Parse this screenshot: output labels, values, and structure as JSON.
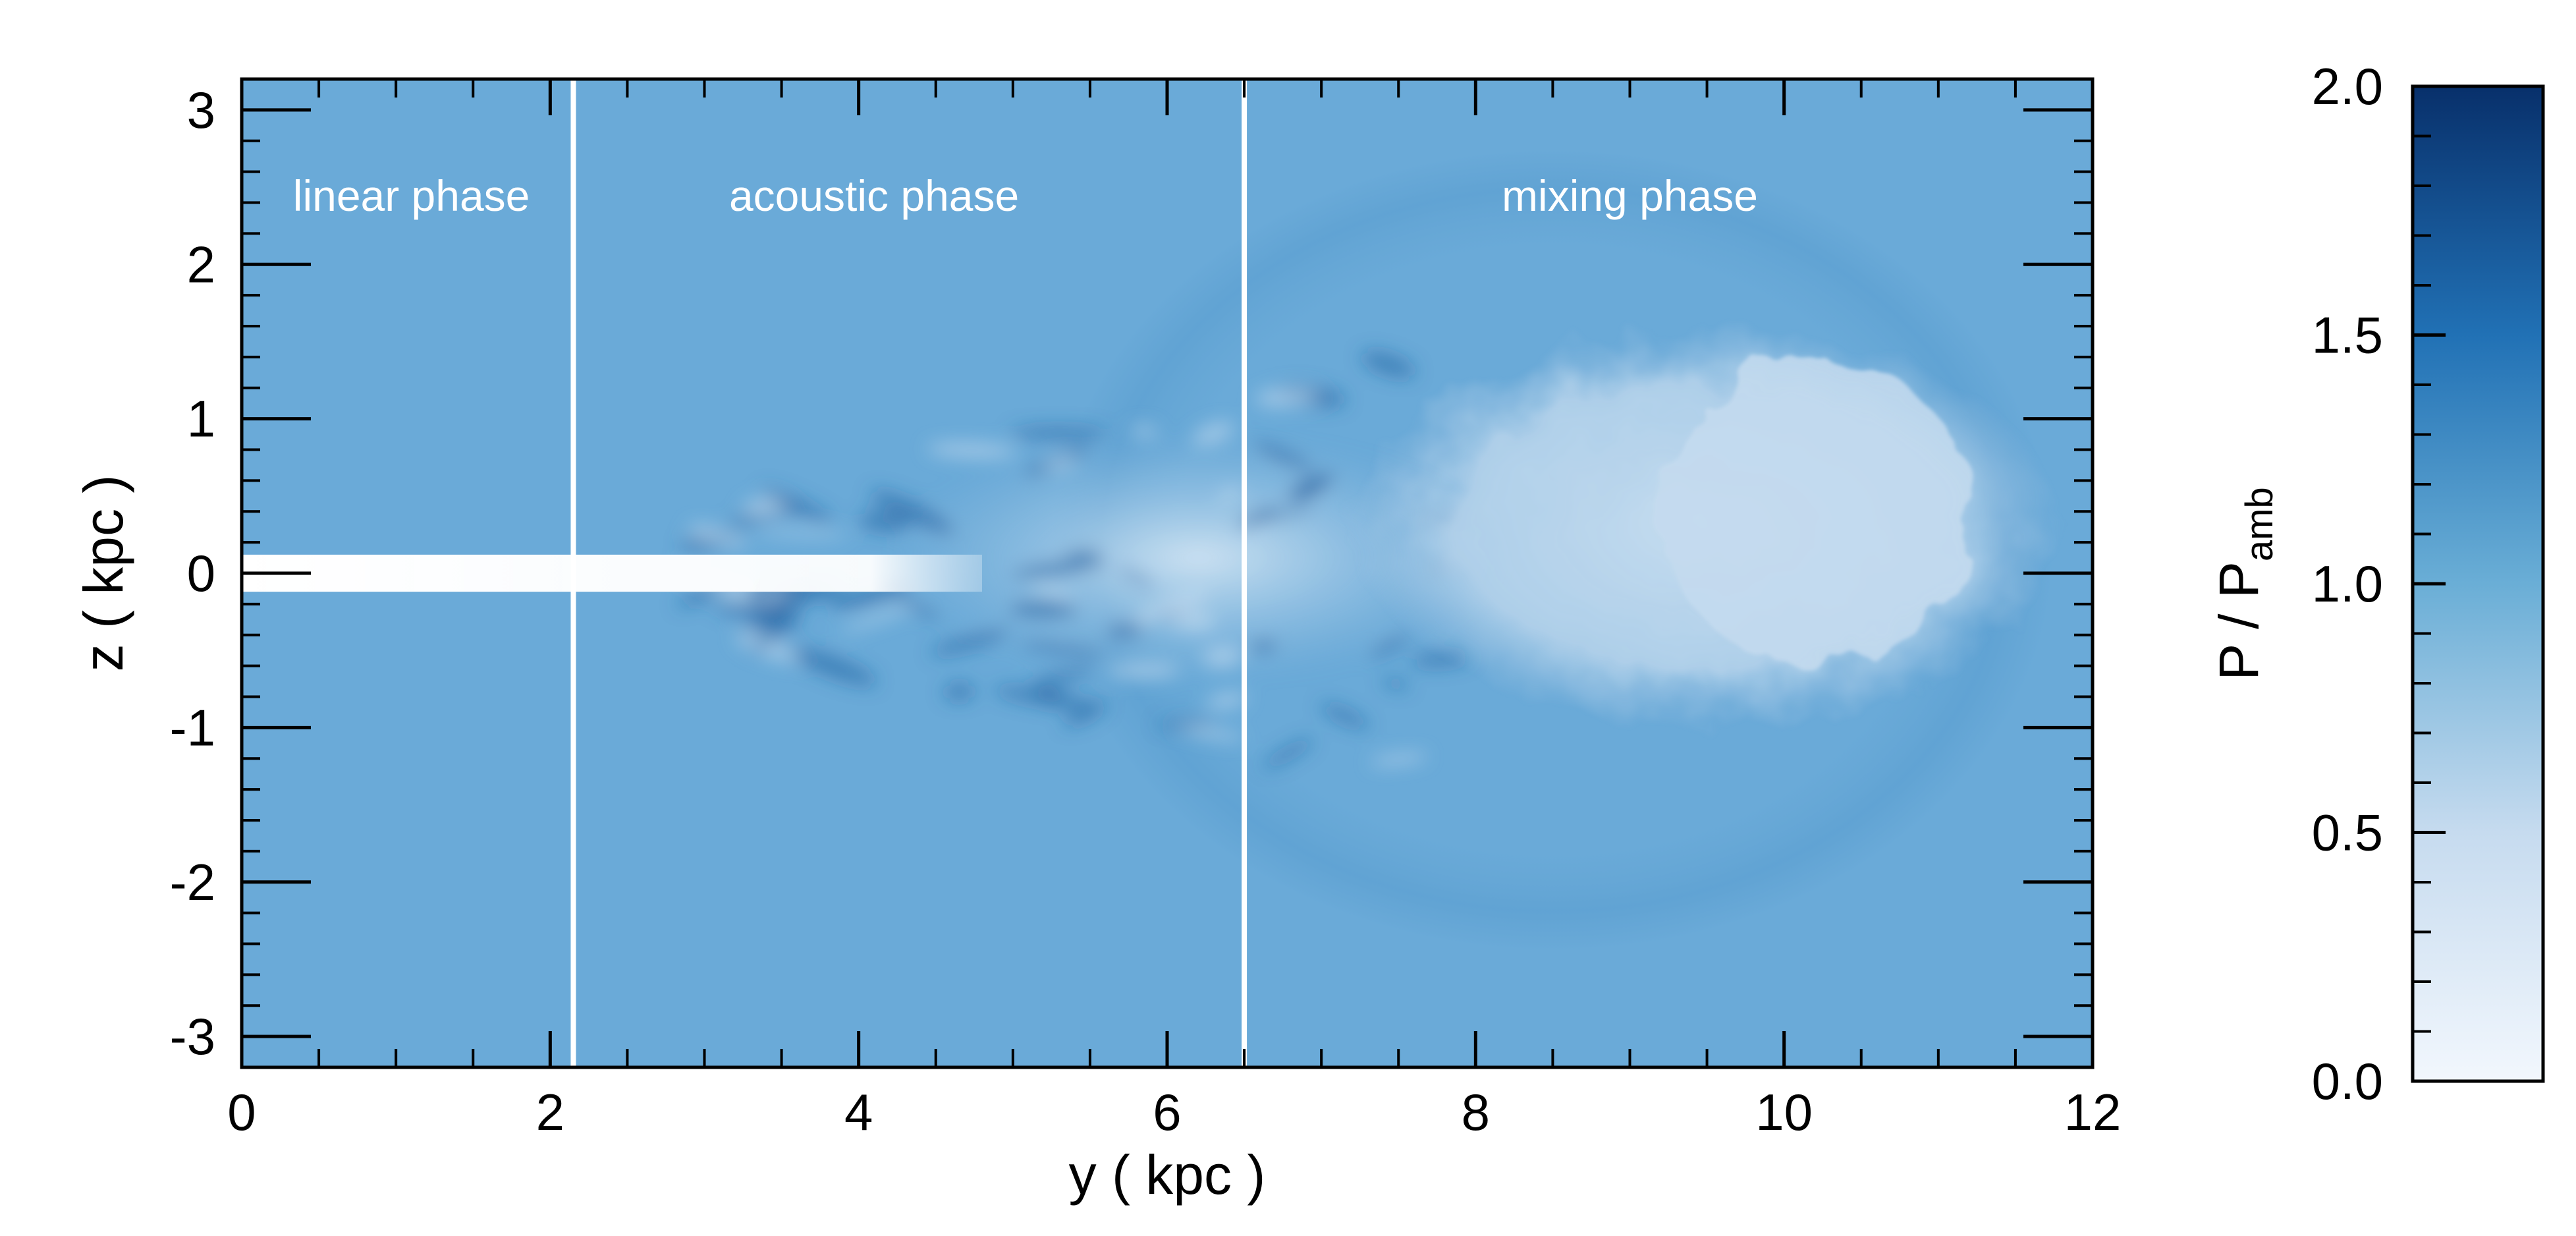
{
  "chart_data": {
    "type": "heatmap",
    "title": "",
    "xlabel": "y ( kpc )",
    "ylabel": "z ( kpc )",
    "xlim": [
      0,
      12
    ],
    "ylim": [
      -3.2,
      3.2
    ],
    "x_ticks": [
      0,
      2,
      4,
      6,
      8,
      10,
      12
    ],
    "y_ticks": [
      -3,
      -2,
      -1,
      0,
      1,
      2,
      3
    ],
    "x_tick_labels": [
      "0",
      "2",
      "4",
      "6",
      "8",
      "10",
      "12"
    ],
    "y_tick_labels": [
      "-3",
      "-2",
      "-1",
      "0",
      "1",
      "2",
      "3"
    ],
    "phase_boundaries": [
      2.15,
      6.5
    ],
    "phases": [
      {
        "label": "linear phase",
        "y_center": 1.1
      },
      {
        "label": "acoustic phase",
        "y_center": 4.1
      },
      {
        "label": "mixing phase",
        "y_center": 9.0
      }
    ],
    "features": {
      "jet": {
        "y_start": 0,
        "y_end": 4.8,
        "z_halfwidth": 0.12
      },
      "cocoon": {
        "y_center": 9.5,
        "z_center": 0.3,
        "y_halfwidth": 2.3,
        "z_halfwidth": 1.3,
        "y_edge": 11.3
      }
    },
    "colorbar": {
      "label": "P / P",
      "label_subscript": "amb",
      "range": [
        0.0,
        2.0
      ],
      "ticks": [
        0.0,
        0.5,
        1.0,
        1.5,
        2.0
      ],
      "tick_labels": [
        "0.0",
        "0.5",
        "1.0",
        "1.5",
        "2.0"
      ],
      "colormap": "Blues",
      "color_low": "#f2f7fd",
      "color_mid": "#6aaed6",
      "color_high": "#08306b"
    },
    "background_value": 1.0,
    "background_color": "#6aaad8"
  }
}
